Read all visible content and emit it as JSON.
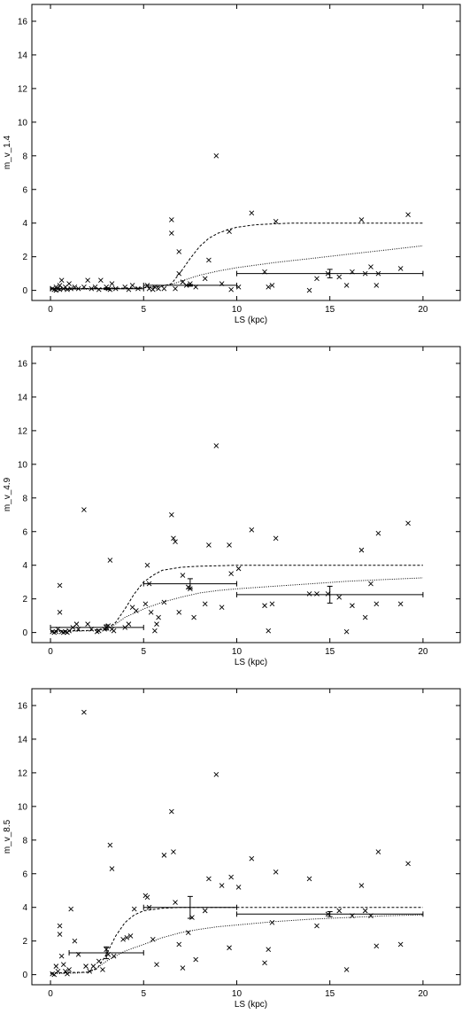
{
  "chart_data": [
    {
      "type": "scatter",
      "title": "",
      "xlabel": "LS (kpc)",
      "ylabel": "m_v_1.4",
      "xlim": [
        -1,
        22
      ],
      "ylim": [
        -0.6,
        17
      ],
      "xticks": [
        0,
        5,
        10,
        15,
        20
      ],
      "yticks": [
        0,
        2,
        4,
        6,
        8,
        10,
        12,
        14,
        16
      ],
      "grid": false,
      "points": [
        [
          0.1,
          0.1
        ],
        [
          0.2,
          0.05
        ],
        [
          0.3,
          0.2
        ],
        [
          0.3,
          0.0
        ],
        [
          0.4,
          0.1
        ],
        [
          0.5,
          0.3
        ],
        [
          0.5,
          0.05
        ],
        [
          0.6,
          0.6
        ],
        [
          0.7,
          0.1
        ],
        [
          0.8,
          0.2
        ],
        [
          0.9,
          0.05
        ],
        [
          1.0,
          0.4
        ],
        [
          1.1,
          0.1
        ],
        [
          1.3,
          0.2
        ],
        [
          1.5,
          0.1
        ],
        [
          1.8,
          0.2
        ],
        [
          2.0,
          0.6
        ],
        [
          2.2,
          0.1
        ],
        [
          2.4,
          0.2
        ],
        [
          2.6,
          0.05
        ],
        [
          2.7,
          0.6
        ],
        [
          3.0,
          0.2
        ],
        [
          3.1,
          0.1
        ],
        [
          3.2,
          0.05
        ],
        [
          3.3,
          0.4
        ],
        [
          3.5,
          0.1
        ],
        [
          4.0,
          0.2
        ],
        [
          4.2,
          0.05
        ],
        [
          4.4,
          0.3
        ],
        [
          4.7,
          0.1
        ],
        [
          5.2,
          0.3
        ],
        [
          5.3,
          0.1
        ],
        [
          5.5,
          0.05
        ],
        [
          5.6,
          0.2
        ],
        [
          5.8,
          0.1
        ],
        [
          6.1,
          0.1
        ],
        [
          6.5,
          4.2
        ],
        [
          6.5,
          3.4
        ],
        [
          6.7,
          0.1
        ],
        [
          6.9,
          1.0
        ],
        [
          6.9,
          2.3
        ],
        [
          7.1,
          0.5
        ],
        [
          7.3,
          0.3
        ],
        [
          7.5,
          0.4
        ],
        [
          7.8,
          0.2
        ],
        [
          8.3,
          0.7
        ],
        [
          8.5,
          1.8
        ],
        [
          8.9,
          8.0
        ],
        [
          9.2,
          0.4
        ],
        [
          9.6,
          3.5
        ],
        [
          9.7,
          0.05
        ],
        [
          10.1,
          0.2
        ],
        [
          10.8,
          4.6
        ],
        [
          11.5,
          1.1
        ],
        [
          11.7,
          0.2
        ],
        [
          11.9,
          0.3
        ],
        [
          12.1,
          4.1
        ],
        [
          13.9,
          0.0
        ],
        [
          14.3,
          0.7
        ],
        [
          14.9,
          1.0
        ],
        [
          15.5,
          0.8
        ],
        [
          15.9,
          0.3
        ],
        [
          16.2,
          1.1
        ],
        [
          16.7,
          4.2
        ],
        [
          16.9,
          1.0
        ],
        [
          17.2,
          1.4
        ],
        [
          17.5,
          0.3
        ],
        [
          17.6,
          1.0
        ],
        [
          18.8,
          1.3
        ],
        [
          19.2,
          4.5
        ]
      ],
      "dashed_curve": [
        [
          0,
          0.1
        ],
        [
          3,
          0.12
        ],
        [
          5,
          0.15
        ],
        [
          6,
          0.25
        ],
        [
          6.5,
          0.4
        ],
        [
          7,
          1.1
        ],
        [
          7.5,
          1.9
        ],
        [
          8,
          2.6
        ],
        [
          8.5,
          3.1
        ],
        [
          9,
          3.4
        ],
        [
          9.5,
          3.6
        ],
        [
          10,
          3.75
        ],
        [
          11,
          3.9
        ],
        [
          12,
          3.96
        ],
        [
          13,
          4.0
        ],
        [
          20,
          4.0
        ]
      ],
      "dotted_curve": [
        [
          0,
          0.05
        ],
        [
          4,
          0.1
        ],
        [
          5.5,
          0.2
        ],
        [
          6.5,
          0.35
        ],
        [
          7,
          0.55
        ],
        [
          8,
          0.9
        ],
        [
          9,
          1.15
        ],
        [
          10,
          1.35
        ],
        [
          12,
          1.65
        ],
        [
          14,
          1.9
        ],
        [
          16,
          2.15
        ],
        [
          18,
          2.4
        ],
        [
          20,
          2.65
        ]
      ],
      "binned": [
        {
          "x0": 0,
          "x1": 5,
          "y": 0.1,
          "xc": 3.0,
          "err": 0.05
        },
        {
          "x0": 5,
          "x1": 10,
          "y": 0.3,
          "xc": 7.5,
          "err": 0.05
        },
        {
          "x0": 10,
          "x1": 20,
          "y": 1.0,
          "xc": 15,
          "err": 0.25
        }
      ]
    },
    {
      "type": "scatter",
      "title": "",
      "xlabel": "LS (kpc)",
      "ylabel": "m_v_4.9",
      "xlim": [
        -1,
        22
      ],
      "ylim": [
        -0.6,
        17
      ],
      "xticks": [
        0,
        5,
        10,
        15,
        20
      ],
      "yticks": [
        0,
        2,
        4,
        6,
        8,
        10,
        12,
        14,
        16
      ],
      "grid": false,
      "points": [
        [
          0.1,
          0.05
        ],
        [
          0.2,
          0.0
        ],
        [
          0.3,
          0.05
        ],
        [
          0.4,
          0.2
        ],
        [
          0.5,
          2.8
        ],
        [
          0.5,
          1.2
        ],
        [
          0.6,
          0.05
        ],
        [
          0.7,
          0.0
        ],
        [
          0.8,
          0.05
        ],
        [
          0.9,
          0.0
        ],
        [
          1.0,
          0.1
        ],
        [
          1.2,
          0.3
        ],
        [
          1.4,
          0.5
        ],
        [
          1.5,
          0.2
        ],
        [
          1.8,
          7.3
        ],
        [
          2.0,
          0.5
        ],
        [
          2.2,
          0.2
        ],
        [
          2.5,
          0.05
        ],
        [
          2.6,
          0.1
        ],
        [
          2.9,
          0.2
        ],
        [
          3.0,
          0.3
        ],
        [
          3.1,
          0.4
        ],
        [
          3.2,
          4.3
        ],
        [
          3.3,
          0.2
        ],
        [
          3.4,
          0.1
        ],
        [
          4.0,
          0.3
        ],
        [
          4.2,
          0.5
        ],
        [
          4.4,
          1.5
        ],
        [
          4.6,
          1.3
        ],
        [
          5.1,
          1.7
        ],
        [
          5.2,
          4.0
        ],
        [
          5.3,
          2.9
        ],
        [
          5.4,
          1.2
        ],
        [
          5.6,
          0.1
        ],
        [
          5.7,
          0.5
        ],
        [
          5.8,
          0.9
        ],
        [
          6.1,
          1.8
        ],
        [
          6.5,
          7.0
        ],
        [
          6.6,
          5.6
        ],
        [
          6.7,
          5.4
        ],
        [
          6.9,
          1.2
        ],
        [
          7.1,
          3.4
        ],
        [
          7.4,
          2.7
        ],
        [
          7.5,
          2.6
        ],
        [
          7.7,
          0.9
        ],
        [
          8.3,
          1.7
        ],
        [
          8.5,
          5.2
        ],
        [
          8.9,
          11.1
        ],
        [
          9.2,
          1.5
        ],
        [
          9.6,
          5.2
        ],
        [
          9.7,
          3.5
        ],
        [
          10.1,
          3.8
        ],
        [
          10.8,
          6.1
        ],
        [
          11.5,
          1.6
        ],
        [
          11.7,
          0.1
        ],
        [
          11.9,
          1.7
        ],
        [
          12.1,
          5.6
        ],
        [
          13.9,
          2.3
        ],
        [
          14.3,
          2.3
        ],
        [
          14.9,
          2.3
        ],
        [
          15.5,
          2.1
        ],
        [
          15.9,
          0.05
        ],
        [
          16.2,
          1.6
        ],
        [
          16.7,
          4.9
        ],
        [
          16.9,
          0.9
        ],
        [
          17.2,
          2.9
        ],
        [
          17.5,
          1.7
        ],
        [
          17.6,
          5.9
        ],
        [
          18.8,
          1.7
        ],
        [
          19.2,
          6.5
        ]
      ],
      "dashed_curve": [
        [
          0,
          0.1
        ],
        [
          2,
          0.12
        ],
        [
          3,
          0.2
        ],
        [
          3.5,
          0.6
        ],
        [
          4,
          1.4
        ],
        [
          4.5,
          2.3
        ],
        [
          5,
          3.0
        ],
        [
          5.5,
          3.4
        ],
        [
          6,
          3.7
        ],
        [
          7,
          3.88
        ],
        [
          8,
          3.94
        ],
        [
          9,
          3.97
        ],
        [
          10,
          4.0
        ],
        [
          20,
          4.0
        ]
      ],
      "dotted_curve": [
        [
          0,
          0.05
        ],
        [
          2,
          0.1
        ],
        [
          3,
          0.2
        ],
        [
          3.5,
          0.5
        ],
        [
          4,
          0.9
        ],
        [
          5,
          1.4
        ],
        [
          6,
          1.8
        ],
        [
          7,
          2.1
        ],
        [
          8,
          2.35
        ],
        [
          9,
          2.5
        ],
        [
          10,
          2.6
        ],
        [
          12,
          2.75
        ],
        [
          14,
          2.9
        ],
        [
          16,
          3.05
        ],
        [
          18,
          3.15
        ],
        [
          20,
          3.25
        ]
      ],
      "binned": [
        {
          "x0": 0,
          "x1": 5,
          "y": 0.3,
          "xc": 3.0,
          "err": 0.15
        },
        {
          "x0": 5,
          "x1": 10,
          "y": 2.9,
          "xc": 7.5,
          "err": 0.3
        },
        {
          "x0": 10,
          "x1": 20,
          "y": 2.25,
          "xc": 15,
          "err": 0.5
        }
      ]
    },
    {
      "type": "scatter",
      "title": "",
      "xlabel": "LS (kpc)",
      "ylabel": "m_v_8.5",
      "xlim": [
        -1,
        22
      ],
      "ylim": [
        -0.6,
        17
      ],
      "xticks": [
        0,
        5,
        10,
        15,
        20
      ],
      "yticks": [
        0,
        2,
        4,
        6,
        8,
        10,
        12,
        14,
        16
      ],
      "grid": false,
      "points": [
        [
          0.1,
          0.05
        ],
        [
          0.2,
          0.0
        ],
        [
          0.3,
          0.5
        ],
        [
          0.4,
          0.2
        ],
        [
          0.5,
          2.9
        ],
        [
          0.5,
          2.4
        ],
        [
          0.6,
          1.1
        ],
        [
          0.7,
          0.6
        ],
        [
          0.8,
          0.2
        ],
        [
          0.9,
          0.05
        ],
        [
          1.0,
          0.3
        ],
        [
          1.1,
          3.9
        ],
        [
          1.3,
          2.0
        ],
        [
          1.5,
          1.2
        ],
        [
          1.8,
          15.6
        ],
        [
          1.9,
          0.5
        ],
        [
          2.1,
          0.2
        ],
        [
          2.3,
          0.5
        ],
        [
          2.6,
          0.8
        ],
        [
          2.8,
          0.3
        ],
        [
          3.0,
          1.5
        ],
        [
          3.1,
          1.2
        ],
        [
          3.2,
          7.7
        ],
        [
          3.3,
          6.3
        ],
        [
          3.4,
          1.1
        ],
        [
          3.9,
          2.1
        ],
        [
          4.1,
          2.2
        ],
        [
          4.3,
          2.3
        ],
        [
          4.5,
          3.9
        ],
        [
          5.1,
          4.7
        ],
        [
          5.2,
          4.6
        ],
        [
          5.3,
          4.0
        ],
        [
          5.5,
          2.1
        ],
        [
          5.7,
          0.6
        ],
        [
          6.1,
          7.1
        ],
        [
          6.5,
          9.7
        ],
        [
          6.6,
          7.3
        ],
        [
          6.7,
          4.3
        ],
        [
          6.9,
          1.8
        ],
        [
          7.1,
          0.4
        ],
        [
          7.4,
          2.5
        ],
        [
          7.6,
          3.4
        ],
        [
          7.8,
          0.9
        ],
        [
          8.3,
          3.8
        ],
        [
          8.5,
          5.7
        ],
        [
          8.9,
          11.9
        ],
        [
          9.2,
          5.3
        ],
        [
          9.6,
          1.6
        ],
        [
          9.7,
          5.8
        ],
        [
          10.1,
          5.2
        ],
        [
          10.8,
          6.9
        ],
        [
          11.5,
          0.7
        ],
        [
          11.7,
          1.5
        ],
        [
          11.9,
          3.1
        ],
        [
          12.1,
          6.1
        ],
        [
          13.9,
          5.7
        ],
        [
          14.3,
          2.9
        ],
        [
          14.9,
          3.6
        ],
        [
          15.5,
          3.8
        ],
        [
          15.9,
          0.3
        ],
        [
          16.2,
          3.5
        ],
        [
          16.7,
          5.3
        ],
        [
          16.9,
          3.8
        ],
        [
          17.2,
          3.5
        ],
        [
          17.5,
          1.7
        ],
        [
          17.6,
          7.3
        ],
        [
          18.8,
          1.8
        ],
        [
          19.2,
          6.6
        ]
      ],
      "dashed_curve": [
        [
          0,
          0.1
        ],
        [
          2,
          0.15
        ],
        [
          2.5,
          0.35
        ],
        [
          3,
          1.2
        ],
        [
          3.5,
          2.3
        ],
        [
          4,
          3.1
        ],
        [
          4.5,
          3.55
        ],
        [
          5,
          3.8
        ],
        [
          6,
          3.95
        ],
        [
          7,
          4.0
        ],
        [
          20,
          4.0
        ]
      ],
      "dotted_curve": [
        [
          0,
          0.05
        ],
        [
          1.5,
          0.1
        ],
        [
          2,
          0.15
        ],
        [
          2.5,
          0.4
        ],
        [
          3,
          0.8
        ],
        [
          3.5,
          1.1
        ],
        [
          4,
          1.4
        ],
        [
          5,
          1.8
        ],
        [
          6,
          2.2
        ],
        [
          7,
          2.5
        ],
        [
          8,
          2.7
        ],
        [
          9,
          2.85
        ],
        [
          10,
          2.95
        ],
        [
          12,
          3.15
        ],
        [
          14,
          3.3
        ],
        [
          16,
          3.4
        ],
        [
          18,
          3.5
        ],
        [
          20,
          3.55
        ]
      ],
      "binned": [
        {
          "x0": 1,
          "x1": 5,
          "y": 1.3,
          "xc": 3.0,
          "err": 0.35
        },
        {
          "x0": 5,
          "x1": 10,
          "y": 4.0,
          "xc": 7.5,
          "err": 0.65
        },
        {
          "x0": 10,
          "x1": 20,
          "y": 3.6,
          "xc": 15,
          "err": 0.15
        }
      ]
    }
  ]
}
